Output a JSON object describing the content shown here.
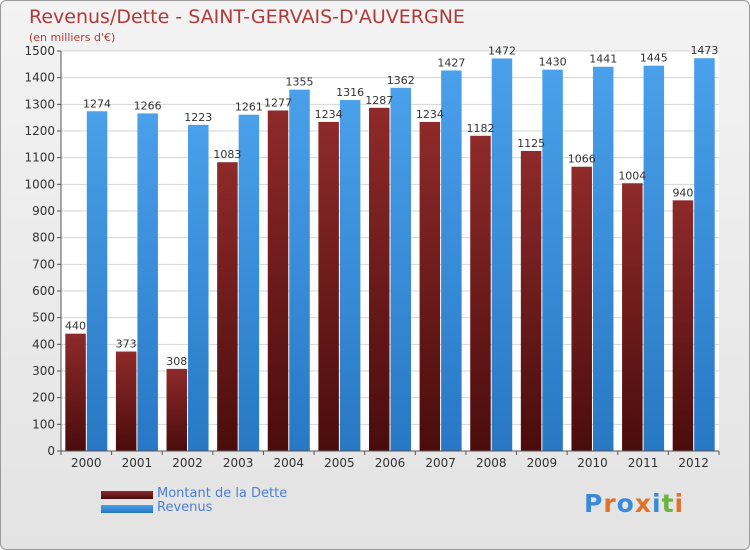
{
  "chart_data": {
    "type": "bar",
    "title": "Revenus/Dette - SAINT-GERVAIS-D'AUVERGNE",
    "subtitle": "(en milliers d'€)",
    "categories": [
      "2000",
      "2001",
      "2002",
      "2003",
      "2004",
      "2005",
      "2006",
      "2007",
      "2008",
      "2009",
      "2010",
      "2011",
      "2012"
    ],
    "series": [
      {
        "name": "Montant de la Dette",
        "color": "#7a1e1e",
        "values": [
          440,
          373,
          308,
          1083,
          1277,
          1234,
          1287,
          1234,
          1182,
          1125,
          1066,
          1004,
          940
        ]
      },
      {
        "name": "Revenus",
        "color": "#3a8ad8",
        "values": [
          1274,
          1266,
          1223,
          1261,
          1355,
          1316,
          1362,
          1427,
          1472,
          1430,
          1441,
          1445,
          1473
        ]
      }
    ],
    "yticks": [
      "0",
      "100",
      "200",
      "300",
      "400",
      "500",
      "600",
      "700",
      "800",
      "900",
      "1000",
      "1100",
      "1200",
      "1300",
      "1400",
      "1500"
    ],
    "ylim": [
      0,
      1500
    ],
    "grid": true,
    "legend_position": "bottom-left"
  },
  "logo": {
    "text": "Proxiti",
    "colors": [
      "#3a8ad8",
      "#e0732a",
      "#3a8ad8",
      "#e0732a",
      "#3a8ad8",
      "#6bb33a",
      "#e0732a"
    ]
  }
}
